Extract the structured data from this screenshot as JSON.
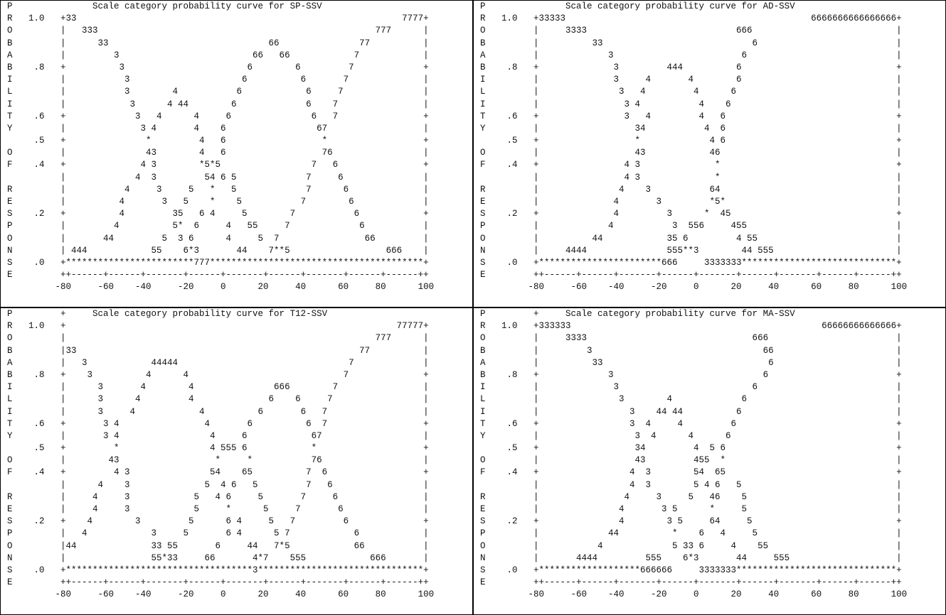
{
  "panels": [
    {
      "lines": [
        "P               Scale category probability curve for SP-SSV",
        "R   1.0   +33                                                             7777+",
        "O         |   333                                                    777      |",
        "B         |      33                              66               77          |",
        "A         |         3                         66   66            7            |",
        "B    .8   +          3                       6        6         7             +",
        "I         |           3                     6          6       7              |",
        "L         |           3        4           6            6     7               |",
        "I         |            3      4 44        6             6    7                |",
        "T    .6   +             3   4      4     6               6   7                +",
        "Y         |              3 4       4    6                 67                  |",
        "     .5   +               *         4   6                  *                  +",
        "O         |               43        4   6                  76                 |",
        "F    .4   +              4 3        *5*5                 7   6                +",
        "          |             4  3         54 6 5             7     6               |",
        "R         |           4     3     5   *   5             7      6              |",
        "E         |          4       3   5    *    5           7        6             |",
        "S    .2   +          4         35   6 4     5        7           6            +",
        "P         |         4          5*  6     4   55     7             6           |",
        "O         |       44         5  3 6      4     5  7                66         |",
        "N         | 444            55    6*3       44    7**5                  666    |",
        "S    .0   +************************777****************************************+",
        "E         ++------+------+-------+------+-------+------+-------+------+------++",
        "         -80     -60    -40     -20     0      20     40      60     80      100"
      ]
    },
    {
      "lines": [
        "P               Scale category probability curve for AD-SSV",
        "R   1.0   +33333                                              6666666666666666+",
        "O         |     3333                            666                           |",
        "B         |          33                            6                          |",
        "A         |             3                        6                            |",
        "B    .8   +              3         444          6                             +",
        "I         |              3     4       4        6                             |",
        "L         |               3   4         4      6                              |",
        "I         |                3 4           4    6                               |",
        "T    .6   +                3   4         4   6                                +",
        "Y         |                  34           4  6                                |",
        "     .5   +                  *             4 6                                +",
        "O         |                  43            46                                 |",
        "F    .4   +                4 3              *                                 +",
        "          |                4 3              *                                 |",
        "R         |               4    3           64                                 |",
        "E         |              4       3         *5*                                |",
        "S    .2   +              4         3      *  45                               +",
        "P         |             4           3  556     455                            |",
        "O         |          44            35 6         4 55                          |",
        "N         |     4444               555**3        44 555                       |",
        "S    .0   +***********************666     3333333*****************************+",
        "E         ++------+------+-------+------+-------+------+-------+------+------++",
        "         -80     -60    -40     -20     0      20     40      60     80      100"
      ]
    },
    {
      "lines": [
        "P         +     Scale category probability curve for T12-SSV",
        "R   1.0   +                                                              77777+",
        "O         |                                                          777      |",
        "B         |33                                                     77          |",
        "A         |   3            44444                                7             |",
        "B    .8   +    3          4      4                             7              +",
        "I         |      3       4        4               666        7                |",
        "L         |      3      4         4              6    6     7                 |",
        "I         |      3     4            4          6       6   7                  |",
        "T    .6   +       3 4                4       6          6  7                  +",
        "Y         |       3 4                 4     6            67                   |",
        "     .5   +         *                 4 555 6            *                    +",
        "O         |        43                  *     *           76                   |",
        "F    .4   +         4 3               54    65          7  6                  +",
        "          |      4    3              5  4 6   5         7   6                 |",
        "R         |     4     3            5   4 6     5       7     6                |",
        "E         |     4     3            5     *      5     7       6               |",
        "S    .2   +    4        3         5      6 4     5   7         6              +",
        "P         |   4            3     5       6 4      5 7            6            |",
        "O         |44              33 55       6     44   7*5            66           |",
        "N         |                55*33     66       4*7    555            666       |",
        "S    .0   +***********************************3*******************************+",
        "E         ++------+------+-------+------+-------+------+-------+------+------++",
        "         -80     -60    -40     -20     0      20     40      60     80      100"
      ]
    },
    {
      "lines": [
        "P         +     Scale category probability curve for MA-SSV",
        "R   1.0   +333333                                               66666666666666+",
        "O         |     3333                               666                        |",
        "B         |         3                                66                       |",
        "A         |          33                               6                       |",
        "B    .8   +             3                            6                        +",
        "I         |              3                         6                          |",
        "L         |               3        4             6                            |",
        "I         |                 3    44 44          6                             |",
        "T    .6   +                 3  4     4         6                              +",
        "Y         |                  3  4      4      6                               |",
        "     .5   +                  34         4  5 6                                +",
        "O         |                  43         455  *                                |",
        "F    .4   +                 4  3        54  65                                +",
        "          |                 4  3        5 4 6   5                             |",
        "R         |                4     3     5   46    5                            |",
        "E         |               4       3 5      *     5                            |",
        "S    .2   +               4        3 5     64     5                           +",
        "P         |             44          *    6   4     5                          |",
        "O         |           4             5 33 6     4    55                        |",
        "N         |       4444         555    6*3       44     555                    |",
        "S    .0   +*******************666666     3333333******************************+",
        "E         ++------+------+-------+------+-------+------+-------+------+------++",
        "         -80     -60    -40     -20     0      20     40      60     80      100"
      ]
    }
  ]
}
